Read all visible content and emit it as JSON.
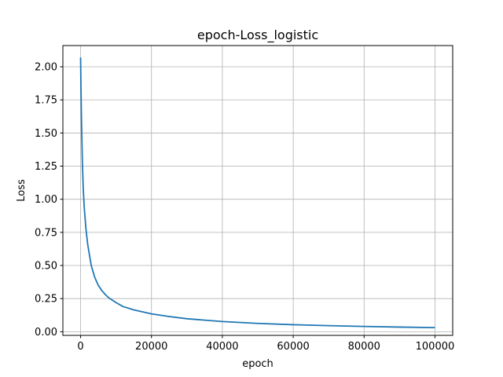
{
  "chart_data": {
    "type": "line",
    "title": "epoch-Loss_logistic",
    "xlabel": "epoch",
    "ylabel": "Loss",
    "xlim": [
      -5000,
      105000
    ],
    "ylim": [
      -0.0275,
      2.16
    ],
    "xticks": [
      0,
      20000,
      40000,
      60000,
      80000,
      100000
    ],
    "xtick_labels": [
      "0",
      "20000",
      "40000",
      "60000",
      "80000",
      "100000"
    ],
    "yticks": [
      0.0,
      0.25,
      0.5,
      0.75,
      1.0,
      1.25,
      1.5,
      1.75,
      2.0
    ],
    "ytick_labels": [
      "0.00",
      "0.25",
      "0.50",
      "0.75",
      "1.00",
      "1.25",
      "1.50",
      "1.75",
      "2.00"
    ],
    "grid": true,
    "legend": "none",
    "series": [
      {
        "color": "#1f77b4",
        "x": [
          0,
          100,
          250,
          500,
          750,
          1000,
          1500,
          2000,
          3000,
          4000,
          5000,
          6000,
          7000,
          8000,
          10000,
          12000,
          15000,
          20000,
          25000,
          30000,
          40000,
          50000,
          60000,
          70000,
          80000,
          90000,
          100000
        ],
        "y": [
          2.07,
          1.85,
          1.6,
          1.28,
          1.08,
          0.95,
          0.78,
          0.66,
          0.5,
          0.41,
          0.35,
          0.31,
          0.28,
          0.255,
          0.22,
          0.19,
          0.165,
          0.135,
          0.115,
          0.098,
          0.077,
          0.063,
          0.053,
          0.046,
          0.04,
          0.035,
          0.031
        ]
      }
    ]
  }
}
